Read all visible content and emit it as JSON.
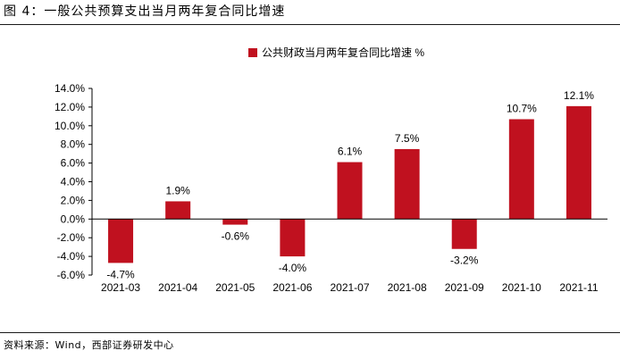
{
  "figure": {
    "title": "图 4：一般公共预算支出当月两年复合同比增速",
    "source": "资料来源：Wind，西部证券研发中心"
  },
  "colors": {
    "bar": "#C0111F",
    "text": "#000000"
  },
  "chart_data": {
    "type": "bar",
    "categories": [
      "2021-03",
      "2021-04",
      "2021-05",
      "2021-06",
      "2021-07",
      "2021-08",
      "2021-09",
      "2021-10",
      "2021-11"
    ],
    "series": [
      {
        "name": "公共财政当月两年复合同比增速 %",
        "values": [
          -4.7,
          1.9,
          -0.6,
          -4.0,
          6.1,
          7.5,
          -3.2,
          10.7,
          12.1
        ]
      }
    ],
    "data_labels": [
      "-4.7%",
      "1.9%",
      "-0.6%",
      "-4.0%",
      "6.1%",
      "7.5%",
      "-3.2%",
      "10.7%",
      "12.1%"
    ],
    "y_ticks": [
      -6.0,
      -4.0,
      -2.0,
      0.0,
      2.0,
      4.0,
      6.0,
      8.0,
      10.0,
      12.0,
      14.0
    ],
    "y_tick_labels": [
      "-6.0%",
      "-4.0%",
      "-2.0%",
      "0.0%",
      "2.0%",
      "4.0%",
      "6.0%",
      "8.0%",
      "10.0%",
      "12.0%",
      "14.0%"
    ],
    "ylim": [
      -6,
      14
    ],
    "grid": false,
    "legend_position": "top-center"
  }
}
